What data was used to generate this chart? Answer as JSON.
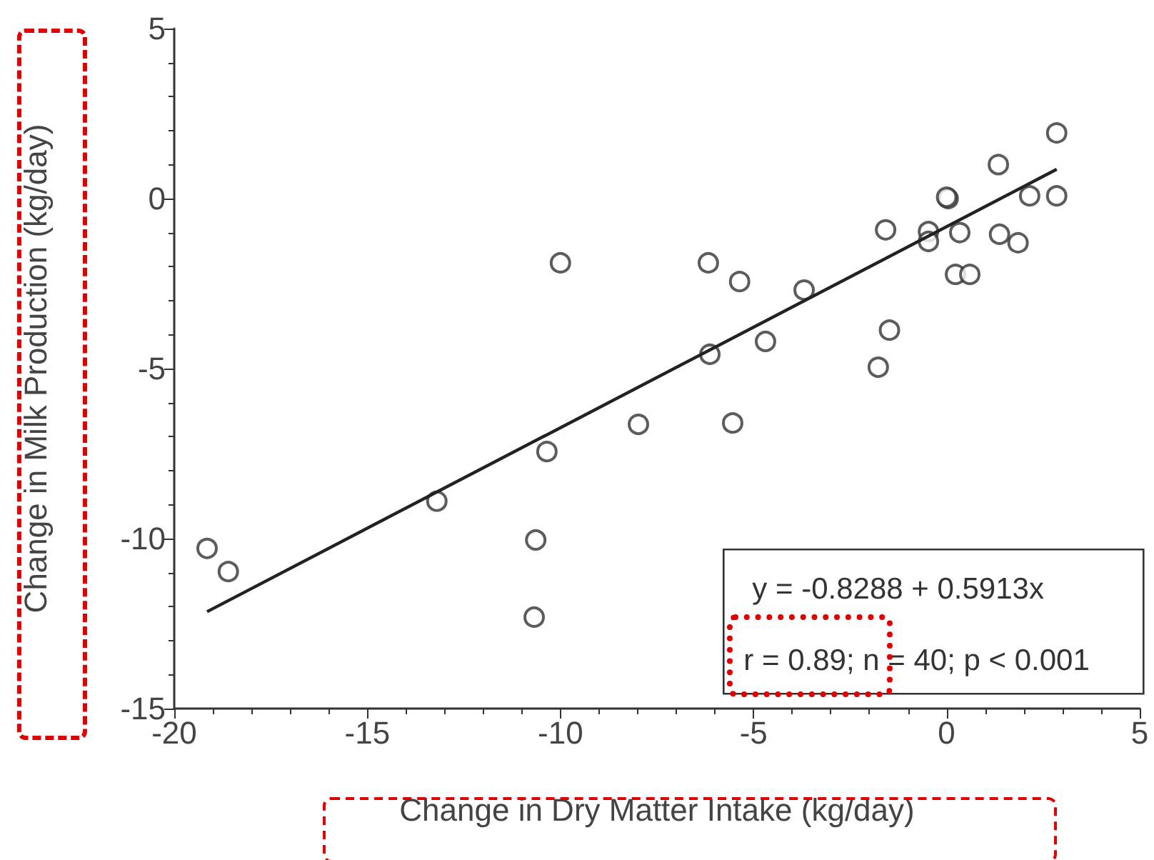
{
  "chart_data": {
    "type": "scatter",
    "xlabel": "Change in Dry Matter Intake (kg/day)",
    "ylabel": "Change in Milk Production (kg/day)",
    "xlim": [
      -20,
      5
    ],
    "xticks": [
      -20,
      -15,
      -10,
      -5,
      0,
      5
    ],
    "ylim": [
      -15,
      5
    ],
    "yticks": [
      -15,
      -10,
      -5,
      0,
      5
    ],
    "grid": false,
    "marker": "circle",
    "annotations": [
      "y = -0.8288 + 0.5913x",
      "r = 0.89; n = 40; p < 0.001"
    ],
    "series": [
      {
        "color": "#333333",
        "x": [
          -19.15,
          -18.6,
          -13.2,
          -10.64,
          -10.68,
          -10.35,
          -10.0,
          -7.98,
          -6.17,
          -6.13,
          -5.36,
          -5.54,
          -4.69,
          -3.69,
          -1.77,
          -1.48,
          -1.58,
          -0.47,
          -0.47,
          0.04,
          0.0,
          0.23,
          0.6,
          0.34,
          1.34,
          1.37,
          1.85,
          2.15,
          2.85,
          2.85
        ],
        "values": [
          -10.29,
          -10.97,
          -8.9,
          -10.04,
          -12.31,
          -7.44,
          -1.89,
          -6.64,
          -1.89,
          -4.58,
          -2.44,
          -6.6,
          -4.2,
          -2.69,
          -4.96,
          -3.87,
          -0.92,
          -0.97,
          -1.26,
          0.0,
          0.04,
          -2.23,
          -2.23,
          -1.0,
          1.0,
          -1.05,
          -1.3,
          0.08,
          1.93,
          0.08
        ]
      },
      {
        "type": "line",
        "color": "#222222",
        "line_style": "solid",
        "marker": "none",
        "x": [
          -19.15,
          2.85
        ],
        "values": [
          -12.15,
          0.86
        ]
      }
    ]
  }
}
